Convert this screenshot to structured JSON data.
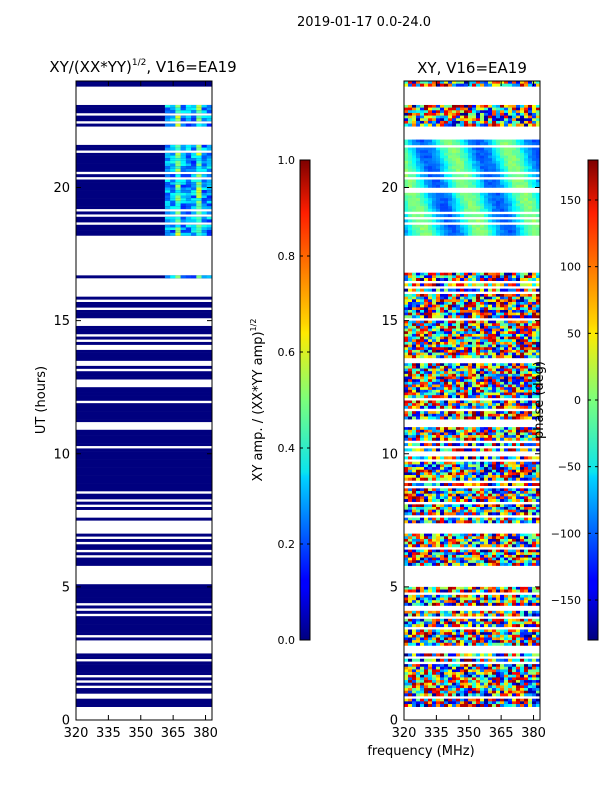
{
  "chart_data": {
    "type": "heatmap",
    "suptitle": "2019-01-17 0.0-24.0",
    "xlabel": "frequency (MHz)",
    "panels": [
      {
        "id": "amp",
        "title_main": "XY/(XX*YY)",
        "title_sup": "1/2",
        "title_rest": ", V16=EA19",
        "ylabel": "UT (hours)",
        "xticks": [
          "320",
          "335",
          "350",
          "365",
          "380"
        ],
        "xtick_values": [
          320,
          335,
          350,
          365,
          380
        ],
        "yticks": [
          "0",
          "5",
          "10",
          "15",
          "20"
        ],
        "ytick_values": [
          0,
          5,
          10,
          15,
          20
        ],
        "xlim": [
          320,
          383
        ],
        "ylim": [
          0,
          24
        ],
        "colorbar": {
          "label_main": "XY amp. / (XX*YY amp)",
          "label_sup": "1/2",
          "ticks": [
            "0.0",
            "0.2",
            "0.4",
            "0.6",
            "0.8",
            "1.0"
          ],
          "tick_values": [
            0.0,
            0.2,
            0.4,
            0.6,
            0.8,
            1.0
          ],
          "range": [
            0.0,
            1.0
          ]
        }
      },
      {
        "id": "phase",
        "title": "XY, V16=EA19",
        "xticks": [
          "320",
          "335",
          "350",
          "365",
          "380"
        ],
        "xtick_values": [
          320,
          335,
          350,
          365,
          380
        ],
        "yticks": [
          "0",
          "5",
          "10",
          "15",
          "20"
        ],
        "ytick_values": [
          0,
          5,
          10,
          15,
          20
        ],
        "xlim": [
          320,
          383
        ],
        "ylim": [
          0,
          24
        ],
        "colorbar": {
          "label": "phase (deg)",
          "ticks": [
            "−150",
            "−100",
            "−50",
            "0",
            "50",
            "100",
            "150"
          ],
          "tick_values": [
            -150,
            -100,
            -50,
            0,
            50,
            100,
            150
          ],
          "range": [
            -180,
            180
          ]
        }
      }
    ],
    "data_segments_ut_hours": [
      [
        0.5,
        2.5
      ],
      [
        2.8,
        5.1
      ],
      [
        5.8,
        7.0
      ],
      [
        7.3,
        11.0
      ],
      [
        11.2,
        16.8
      ],
      [
        18.2,
        21.8
      ],
      [
        22.3,
        23.1
      ],
      [
        23.8,
        24.0
      ]
    ],
    "gap_segments_ut_hours": [
      [
        0.0,
        0.5
      ],
      [
        16.8,
        18.2
      ],
      [
        21.8,
        22.3
      ],
      [
        23.1,
        23.8
      ]
    ]
  }
}
